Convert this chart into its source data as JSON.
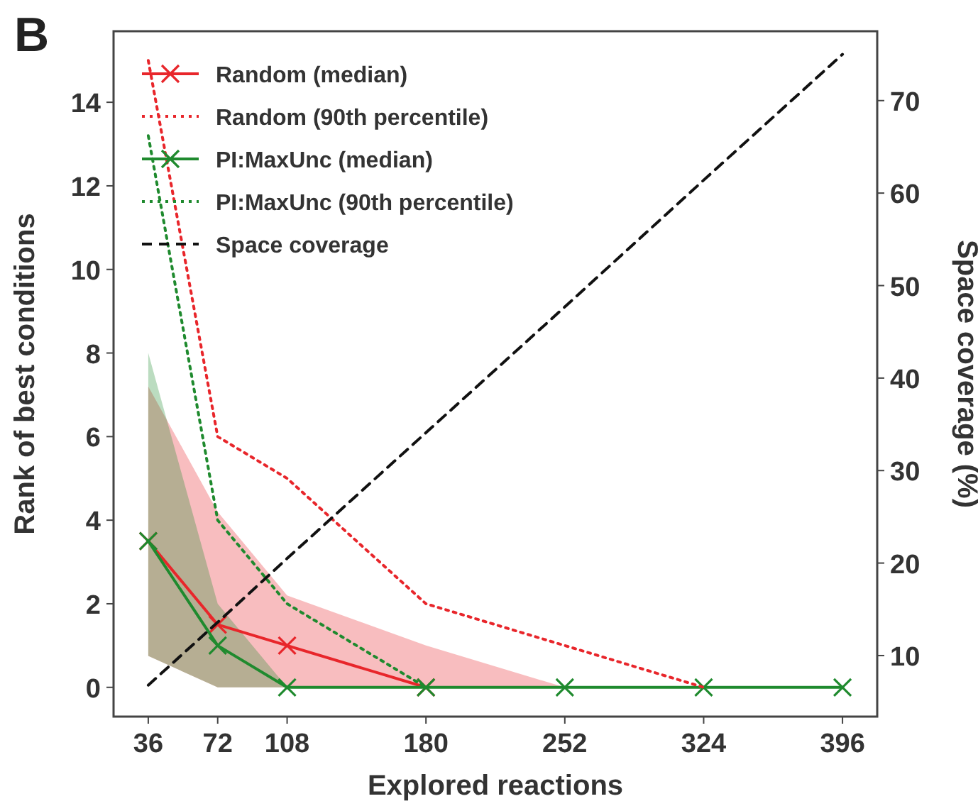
{
  "chart_data": {
    "type": "line",
    "title": "B",
    "xlabel": "Explored reactions",
    "ylabel": "Rank of best conditions",
    "y2label": "Space coverage (%)",
    "x": [
      36,
      72,
      108,
      180,
      252,
      324,
      396
    ],
    "xlim": [
      18,
      414
    ],
    "xticks": [
      36,
      72,
      108,
      180,
      252,
      324,
      396
    ],
    "ylim": [
      -0.7,
      15.7
    ],
    "yticks": [
      0,
      2,
      4,
      6,
      8,
      10,
      12,
      14
    ],
    "y2lim": [
      3.4,
      77.5
    ],
    "y2ticks": [
      10,
      20,
      30,
      40,
      50,
      60,
      70
    ],
    "legend": "top left",
    "grid": false,
    "series": [
      {
        "name": "Random (median)",
        "color": "#e8262b",
        "values": [
          3.5,
          1.5,
          1,
          0,
          null,
          null,
          null
        ],
        "marker": "cross",
        "line_style": "solid",
        "lower": [
          0.75,
          0,
          0,
          0,
          0,
          0,
          0
        ],
        "upper": [
          7.2,
          4.2,
          2.2,
          1,
          0,
          0,
          0
        ]
      },
      {
        "name": "Random (90th percentile)",
        "color": "#e8262b",
        "values": [
          15,
          6,
          5,
          2,
          1,
          0,
          null
        ],
        "marker": "none",
        "line_style": "dotted"
      },
      {
        "name": "PI:MaxUnc (median)",
        "color": "#1f8a2e",
        "values": [
          3.5,
          1,
          0,
          0,
          0,
          0,
          0
        ],
        "marker": "cross",
        "line_style": "solid",
        "lower": [
          0.75,
          0,
          0,
          0,
          0,
          0,
          0
        ],
        "upper": [
          8,
          2,
          0,
          0,
          0,
          0,
          0
        ]
      },
      {
        "name": "PI:MaxUnc (90th percentile)",
        "color": "#1f8a2e",
        "values": [
          13.2,
          4,
          2,
          0,
          null,
          null,
          null
        ],
        "marker": "none",
        "line_style": "dotted"
      },
      {
        "name": "Space coverage",
        "color": "#111111",
        "axis": "y2",
        "values": [
          6.8,
          13.6,
          20.5,
          34.1,
          47.7,
          61.4,
          75
        ],
        "marker": "none",
        "line_style": "dashed"
      }
    ]
  }
}
